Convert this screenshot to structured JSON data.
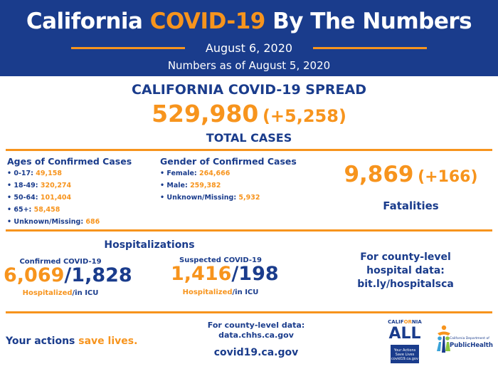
{
  "header": {
    "title_part1": "California ",
    "title_highlight": "COVID-19",
    "title_part2": " By The Numbers",
    "date": "August 6, 2020",
    "as_of": "Numbers as of August 5, 2020"
  },
  "spread": {
    "title": "CALIFORNIA COVID-19 SPREAD",
    "total_cases": "529,980",
    "new_cases": "(+5,258)",
    "label": "TOTAL CASES"
  },
  "ages": {
    "heading": "Ages of Confirmed Cases",
    "items": [
      {
        "label": "• 0-17: ",
        "value": "49,158"
      },
      {
        "label": "• 18-49: ",
        "value": "320,274"
      },
      {
        "label": "• 50-64: ",
        "value": "101,404"
      },
      {
        "label": "• 65+: ",
        "value": "58,458"
      },
      {
        "label": "• Unknown/Missing: ",
        "value": "686"
      }
    ]
  },
  "gender": {
    "heading": "Gender of Confirmed Cases",
    "items": [
      {
        "label": "• Female: ",
        "value": "264,666"
      },
      {
        "label": "• Male: ",
        "value": "259,382"
      },
      {
        "label": "• Unknown/Missing: ",
        "value": "5,932"
      }
    ]
  },
  "fatalities": {
    "count": "9,869",
    "new": "(+166)",
    "label": "Fatalities"
  },
  "hospitalizations": {
    "title": "Hospitalizations",
    "confirmed": {
      "heading": "Confirmed COVID-19",
      "hospitalized": "6,069",
      "slash": "/",
      "icu": "1,828",
      "cap_hosp": "Hospitalized",
      "cap_icu": "/in ICU"
    },
    "suspected": {
      "heading": "Suspected COVID-19",
      "hospitalized": "1,416",
      "slash": "/",
      "icu": "198",
      "cap_hosp": "Hospitalized",
      "cap_icu": "/in ICU"
    }
  },
  "county_hospital": {
    "line1": "For county-level",
    "line2": "hospital data:",
    "line3": "bit.ly/hospitalsca"
  },
  "footer": {
    "actions_part1": "Your actions ",
    "actions_highlight": "save lives.",
    "county_line1": "For county-level data:",
    "county_line2": "data.chhs.ca.gov",
    "site": "covid19.ca.gov",
    "ca_all_logo": {
      "word_part1": "CALIF",
      "word_highlight": "OR",
      "word_part2": "NIA",
      "all": "ALL",
      "box_line1": "Your Actions",
      "box_line2": "Save Lives",
      "box_line3": "covid19.ca.gov"
    },
    "cdph_logo": {
      "line1": "California Department of",
      "line2": "PublicHealth",
      "icon": "people-figures-icon"
    }
  },
  "colors": {
    "navy": "#1a3c8c",
    "orange": "#f7941d"
  }
}
